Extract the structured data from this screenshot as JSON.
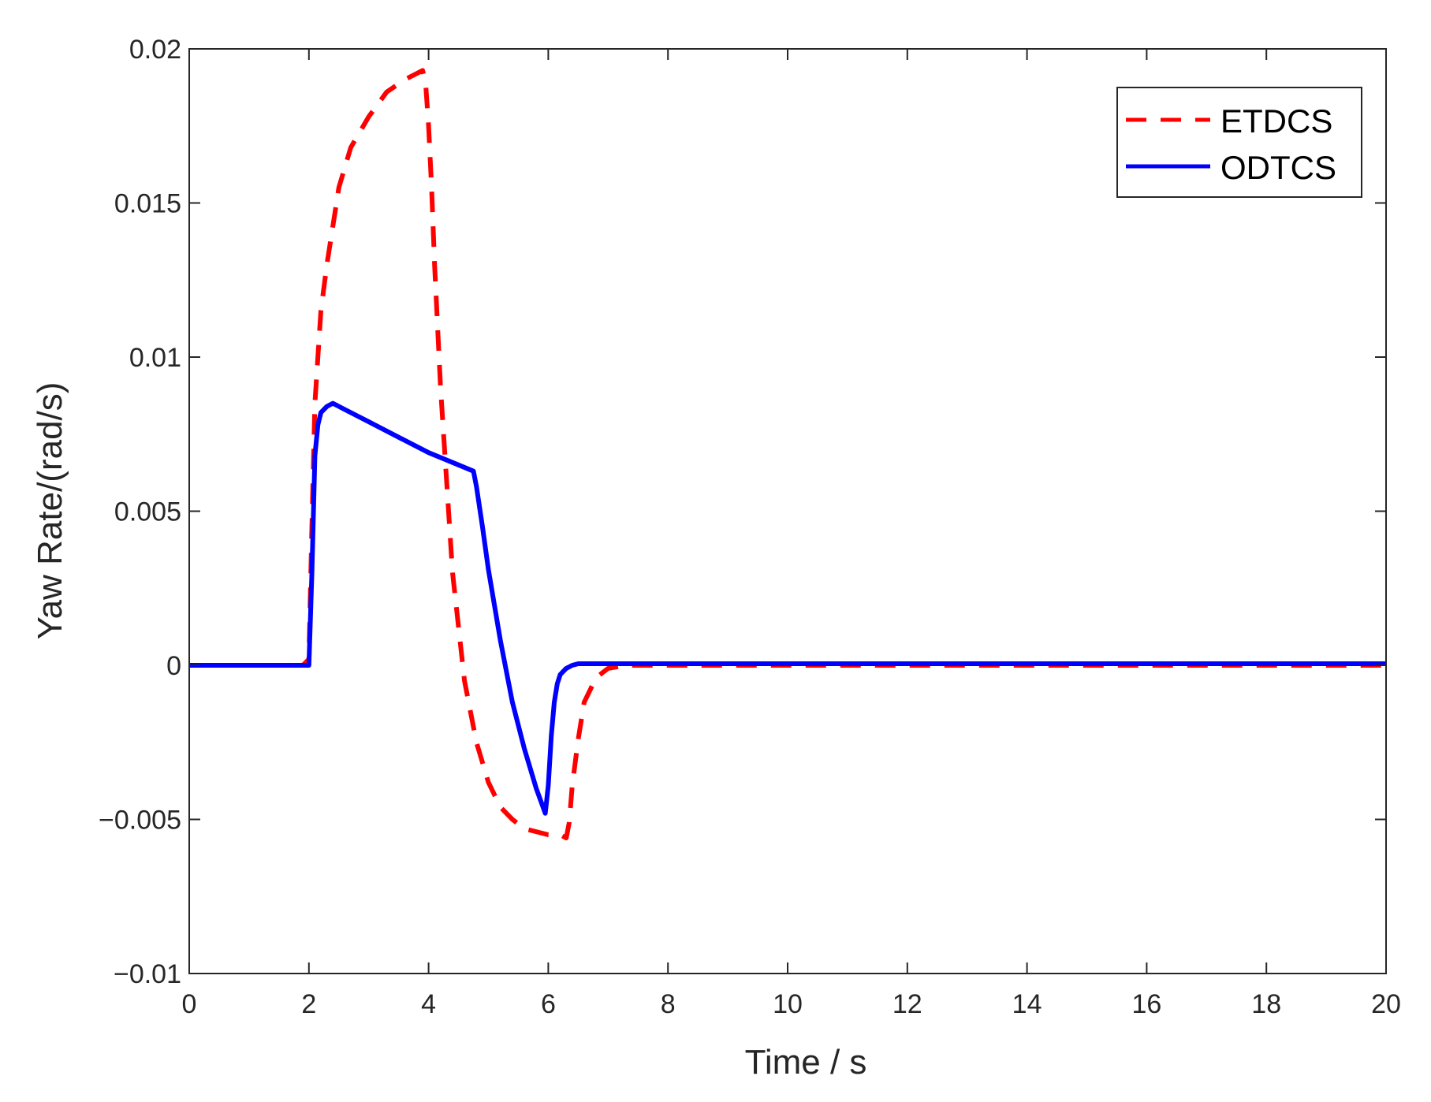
{
  "chart_data": {
    "type": "line",
    "xlabel": "Time / s",
    "ylabel": "Yaw Rate/(rad/s)",
    "xlim": [
      0,
      20
    ],
    "ylim": [
      -0.01,
      0.02
    ],
    "xticks": [
      0,
      2,
      4,
      6,
      8,
      10,
      12,
      14,
      16,
      18,
      20
    ],
    "xtick_labels": [
      "0",
      "2",
      "4",
      "6",
      "8",
      "10",
      "12",
      "14",
      "16",
      "18",
      "20"
    ],
    "yticks": [
      -0.01,
      -0.005,
      0,
      0.005,
      0.01,
      0.015,
      0.02
    ],
    "ytick_labels": [
      "−0.01",
      "−0.005",
      "0",
      "0.005",
      "0.01",
      "0.015",
      "0.02"
    ],
    "grid": false,
    "legend_position": "top-right",
    "series": [
      {
        "name": "ETDCS",
        "color": "#ff0000",
        "style": "dashed",
        "x": [
          0,
          1.9,
          2.0,
          2.05,
          2.1,
          2.2,
          2.3,
          2.5,
          2.7,
          3.0,
          3.3,
          3.6,
          3.9,
          3.95,
          4.0,
          4.05,
          4.1,
          4.2,
          4.4,
          4.6,
          4.8,
          5.0,
          5.2,
          5.4,
          5.6,
          5.8,
          6.0,
          6.2,
          6.3,
          6.35,
          6.4,
          6.5,
          6.6,
          6.8,
          7.0,
          7.3,
          7.6,
          8,
          10,
          12,
          14,
          16,
          18,
          20
        ],
        "y": [
          0,
          0,
          0.0002,
          0.0045,
          0.0085,
          0.0115,
          0.013,
          0.0155,
          0.0168,
          0.0178,
          0.0186,
          0.019,
          0.0193,
          0.0189,
          0.0175,
          0.0155,
          0.013,
          0.009,
          0.003,
          -0.0005,
          -0.0025,
          -0.0038,
          -0.0046,
          -0.005,
          -0.0053,
          -0.0054,
          -0.0055,
          -0.0055,
          -0.0056,
          -0.0051,
          -0.0039,
          -0.0024,
          -0.0012,
          -0.0004,
          -0.0001,
          0,
          0,
          0,
          0,
          0,
          0,
          0,
          0,
          0
        ]
      },
      {
        "name": "ODTCS",
        "color": "#0000ff",
        "style": "solid",
        "x": [
          0,
          2.0,
          2.05,
          2.1,
          2.15,
          2.2,
          2.3,
          2.4,
          2.6,
          3.0,
          3.5,
          4.0,
          4.5,
          4.75,
          4.8,
          4.9,
          5.0,
          5.2,
          5.4,
          5.6,
          5.8,
          5.95,
          6.0,
          6.05,
          6.1,
          6.15,
          6.2,
          6.3,
          6.4,
          6.5,
          6.7,
          7.0,
          8,
          10,
          12,
          14,
          16,
          18,
          20
        ],
        "y": [
          0,
          0,
          0.003,
          0.0068,
          0.0078,
          0.0082,
          0.0084,
          0.0085,
          0.0083,
          0.0079,
          0.0074,
          0.0069,
          0.0065,
          0.0063,
          0.0058,
          0.0045,
          0.0031,
          0.0008,
          -0.0012,
          -0.0027,
          -0.004,
          -0.0048,
          -0.0039,
          -0.0023,
          -0.0012,
          -0.0006,
          -0.0003,
          -0.0001,
          0,
          5e-05,
          5e-05,
          5e-05,
          5e-05,
          5e-05,
          5e-05,
          5e-05,
          5e-05,
          5e-05,
          5e-05
        ]
      }
    ]
  }
}
